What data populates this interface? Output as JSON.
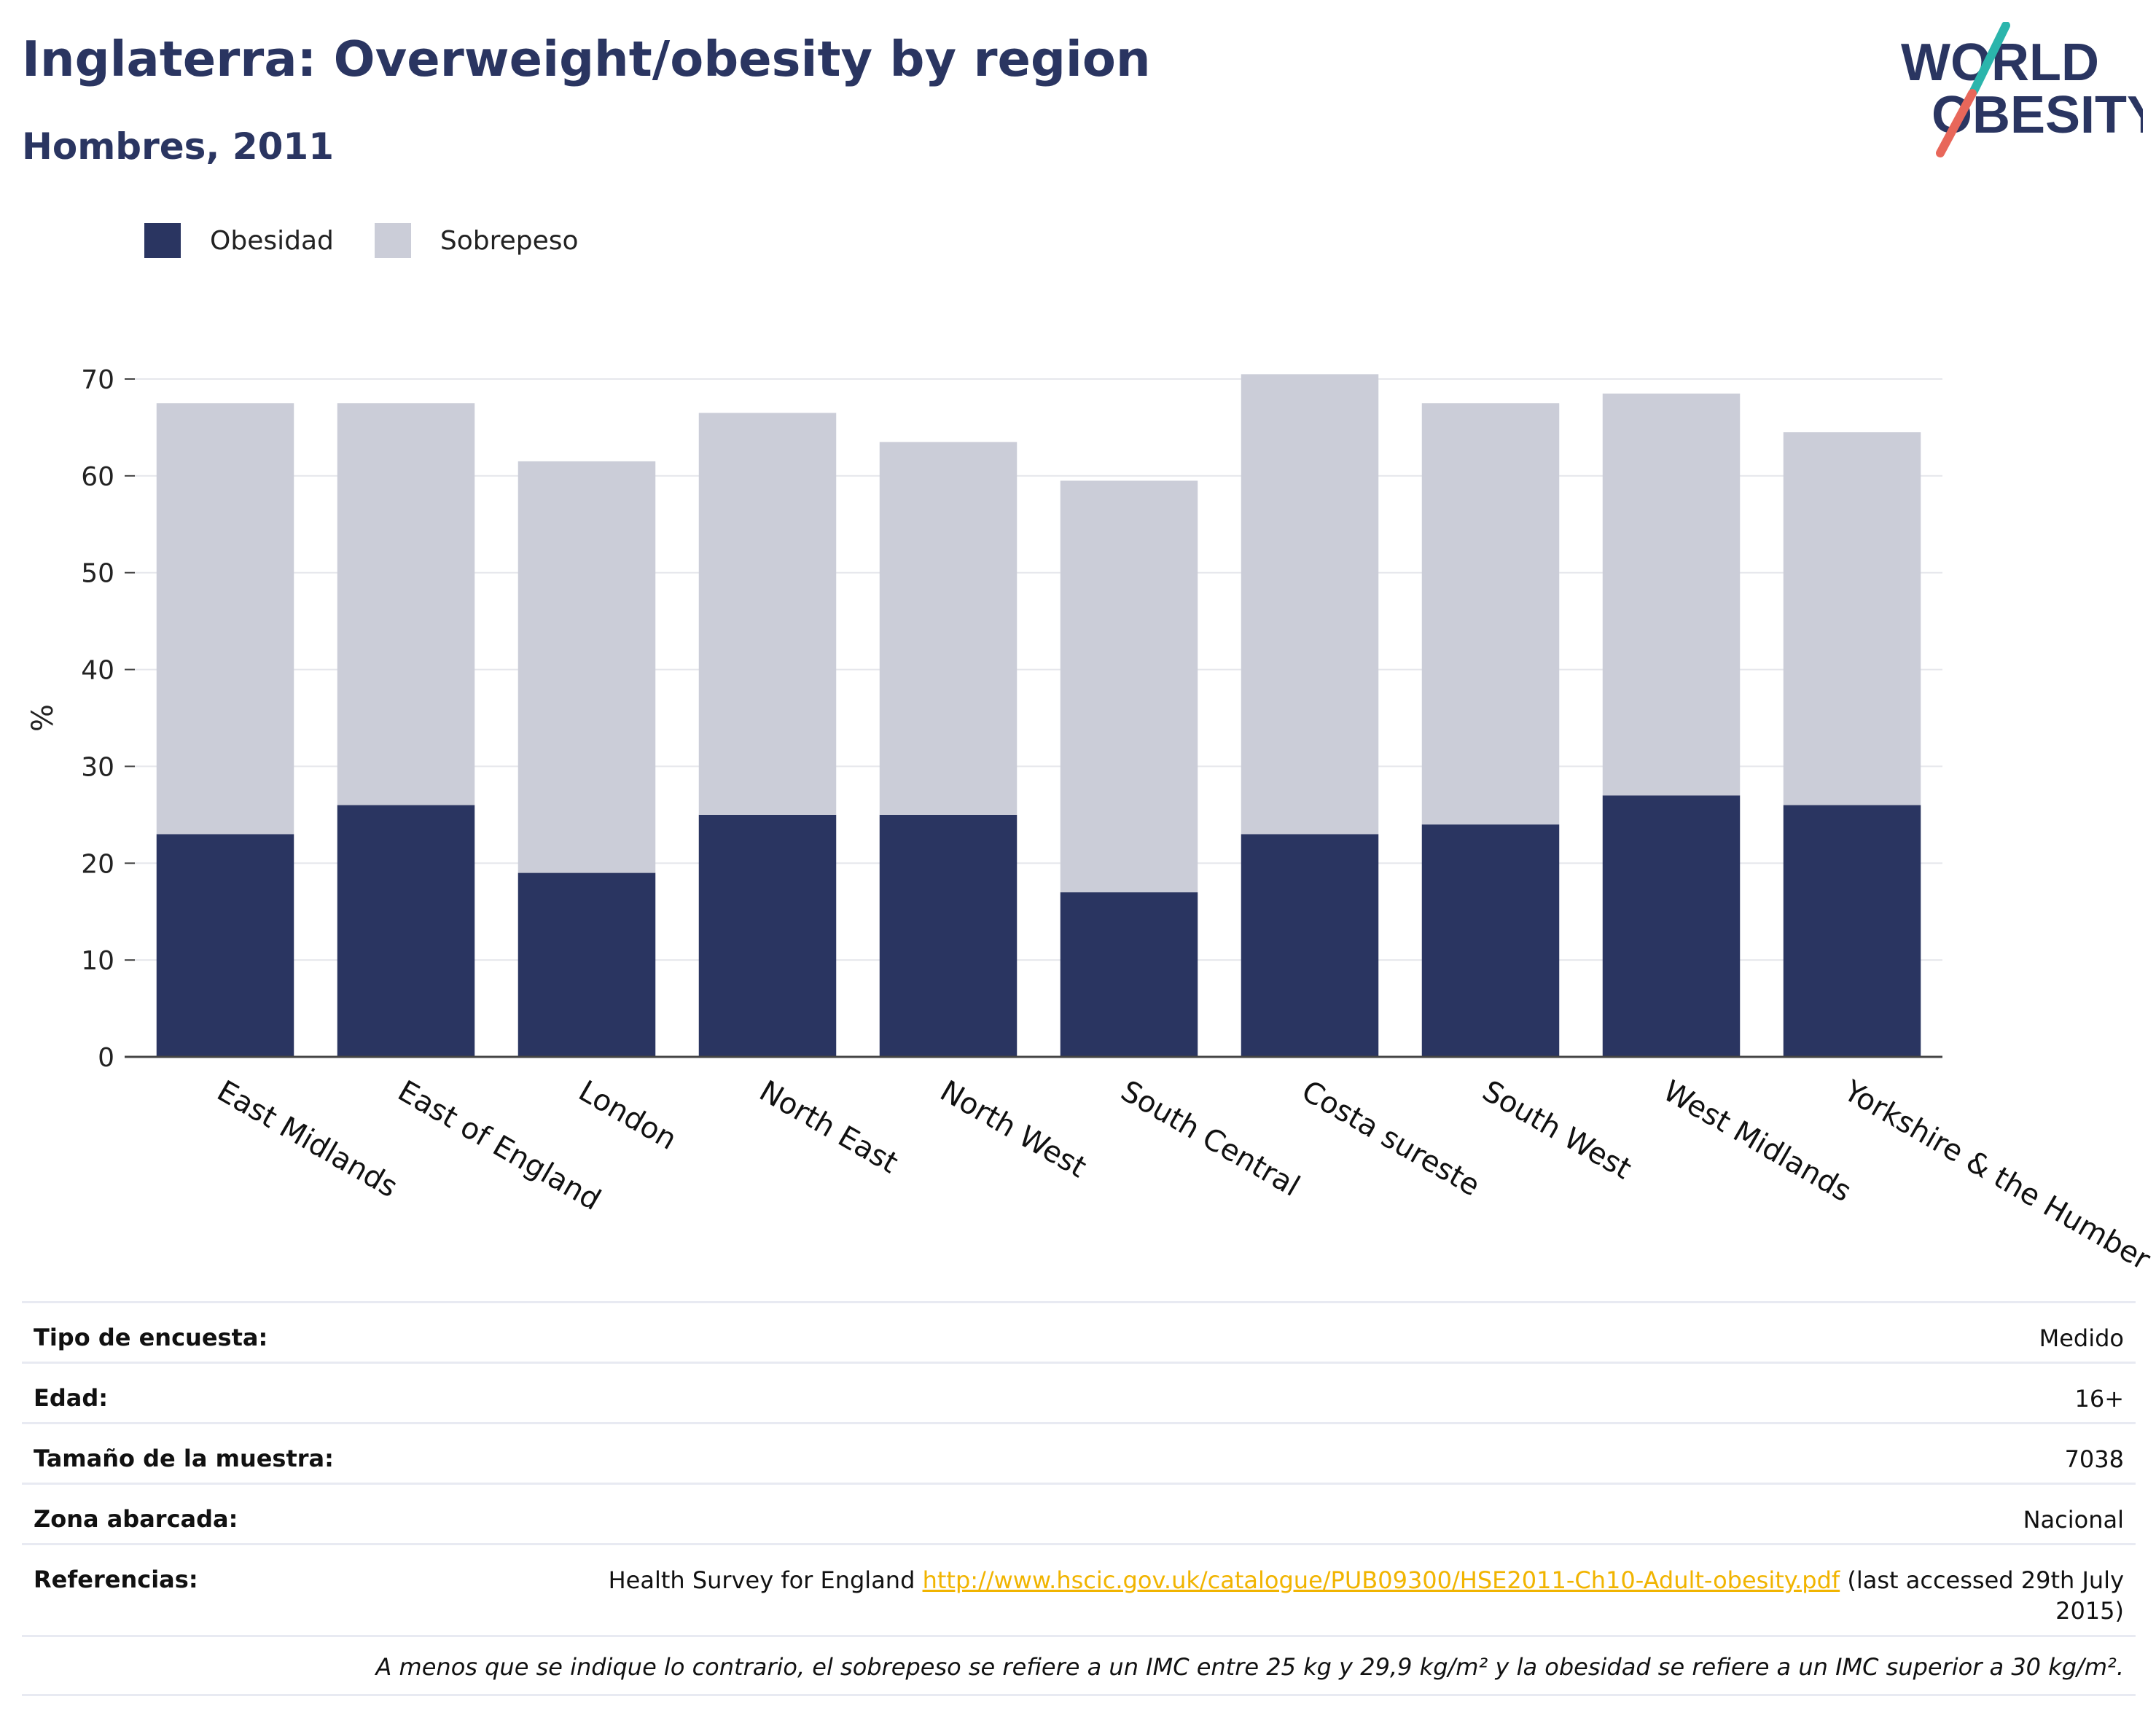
{
  "header": {
    "title": "Inglaterra: Overweight/obesity by region",
    "subtitle": "Hombres, 2011"
  },
  "logo": {
    "line1": "WORLD",
    "line2": "OBESITY",
    "accent_teal": "#2bb5ac",
    "accent_coral": "#e8675a"
  },
  "colors": {
    "obesity": "#2a3561",
    "overweight": "#cbcdd8",
    "title": "#2a3561",
    "link": "#f1b400"
  },
  "chart_data": {
    "type": "bar",
    "stacked": true,
    "categories": [
      "East Midlands",
      "East of England",
      "London",
      "North East",
      "North West",
      "South Central",
      "Costa sureste",
      "South West",
      "West Midlands",
      "Yorkshire & the Humber"
    ],
    "series": [
      {
        "name": "Obesidad",
        "values": [
          23,
          26,
          19,
          25,
          25,
          17,
          23,
          24,
          27,
          26
        ]
      },
      {
        "name": "Sobrepeso",
        "values": [
          44.5,
          41.5,
          42.5,
          41.5,
          38.5,
          42.5,
          47.5,
          43.5,
          41.5,
          38.5
        ]
      }
    ],
    "xlabel": "",
    "ylabel": "%",
    "ylim": [
      0,
      70
    ],
    "yticks": [
      0,
      10,
      20,
      30,
      40,
      50,
      60,
      70
    ],
    "grid": true,
    "legend": "top-left"
  },
  "info": {
    "rows": [
      {
        "label": "Tipo de encuesta:",
        "value": "Medido"
      },
      {
        "label": "Edad:",
        "value": "16+"
      },
      {
        "label": "Tamaño de la muestra:",
        "value": "7038"
      },
      {
        "label": "Zona abarcada:",
        "value": "Nacional"
      }
    ],
    "references": {
      "label": "Referencias:",
      "prefix": "Health Survey for England ",
      "link": "http://www.hscic.gov.uk/catalogue/PUB09300/HSE2011-Ch10-Adult-obesity.pdf",
      "suffix": " (last accessed 29th July 2015)"
    },
    "note": "A menos que se indique lo contrario, el sobrepeso se refiere a un IMC entre 25 kg y 29,9 kg/m² y la obesidad se refiere a un IMC superior a 30 kg/m²."
  }
}
